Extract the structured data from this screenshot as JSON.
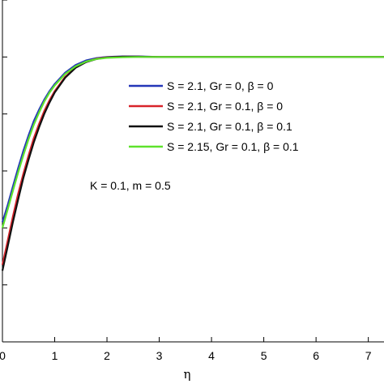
{
  "chart_data": {
    "type": "line",
    "xlabel": "η",
    "ylabel": "",
    "xlim": [
      0,
      7.3
    ],
    "ylim": [
      0,
      1.2
    ],
    "xticks": [
      "0",
      "1",
      "2",
      "3",
      "4",
      "5",
      "6",
      "7"
    ],
    "annotation": "K = 0.1, m = 0.5",
    "legend_position": "center-right",
    "series": [
      {
        "name": "S = 2.1, Gr = 0, β = 0",
        "color": "#2436b8",
        "x": [
          0,
          0.1,
          0.2,
          0.3,
          0.4,
          0.5,
          0.6,
          0.7,
          0.8,
          0.9,
          1.0,
          1.2,
          1.4,
          1.6,
          1.8,
          2.0,
          2.3,
          2.6,
          3.0,
          3.5,
          4.0,
          5.0,
          6.0,
          7.0,
          7.3
        ],
        "y": [
          0.42,
          0.48,
          0.545,
          0.61,
          0.67,
          0.725,
          0.775,
          0.815,
          0.85,
          0.88,
          0.905,
          0.945,
          0.972,
          0.988,
          0.996,
          1.0,
          1.002,
          1.002,
          1.0,
          1.0,
          1.0,
          1.0,
          1.0,
          1.0,
          1.0
        ]
      },
      {
        "name": "S = 2.1, Gr = 0.1, β = 0",
        "color": "#d8232a",
        "x": [
          0,
          0.1,
          0.2,
          0.3,
          0.4,
          0.5,
          0.6,
          0.7,
          0.8,
          0.9,
          1.0,
          1.2,
          1.4,
          1.6,
          1.8,
          2.0,
          2.3,
          2.6,
          3.0,
          3.5,
          4.0,
          5.0,
          6.0,
          7.0,
          7.3
        ],
        "y": [
          0.27,
          0.355,
          0.44,
          0.52,
          0.59,
          0.655,
          0.715,
          0.765,
          0.81,
          0.848,
          0.88,
          0.93,
          0.963,
          0.983,
          0.994,
          0.999,
          1.001,
          1.001,
          1.0,
          1.0,
          1.0,
          1.0,
          1.0,
          1.0,
          1.0
        ]
      },
      {
        "name": "S = 2.1, Gr = 0.1, β = 0.1",
        "color": "#111111",
        "x": [
          0,
          0.1,
          0.2,
          0.3,
          0.4,
          0.5,
          0.6,
          0.7,
          0.8,
          0.9,
          1.0,
          1.2,
          1.4,
          1.6,
          1.8,
          2.0,
          2.3,
          2.6,
          3.0,
          3.5,
          4.0,
          5.0,
          6.0,
          7.0,
          7.3
        ],
        "y": [
          0.25,
          0.335,
          0.42,
          0.5,
          0.575,
          0.64,
          0.7,
          0.753,
          0.8,
          0.84,
          0.875,
          0.927,
          0.962,
          0.982,
          0.993,
          0.998,
          1.001,
          1.001,
          1.0,
          1.0,
          1.0,
          1.0,
          1.0,
          1.0,
          1.0
        ]
      },
      {
        "name": "S = 2.15, Gr = 0.1, β = 0.1",
        "color": "#5ee22c",
        "x": [
          0,
          0.1,
          0.2,
          0.3,
          0.4,
          0.5,
          0.6,
          0.7,
          0.8,
          0.9,
          1.0,
          1.2,
          1.4,
          1.6,
          1.8,
          2.0,
          2.3,
          2.6,
          3.0,
          3.5,
          4.0,
          5.0,
          6.0,
          7.0,
          7.3
        ],
        "y": [
          0.4,
          0.465,
          0.53,
          0.595,
          0.655,
          0.712,
          0.762,
          0.805,
          0.843,
          0.875,
          0.9,
          0.94,
          0.967,
          0.984,
          0.993,
          0.997,
          0.999,
          1.0,
          1.0,
          1.0,
          1.0,
          1.0,
          1.0,
          1.0,
          1.0
        ]
      }
    ]
  }
}
